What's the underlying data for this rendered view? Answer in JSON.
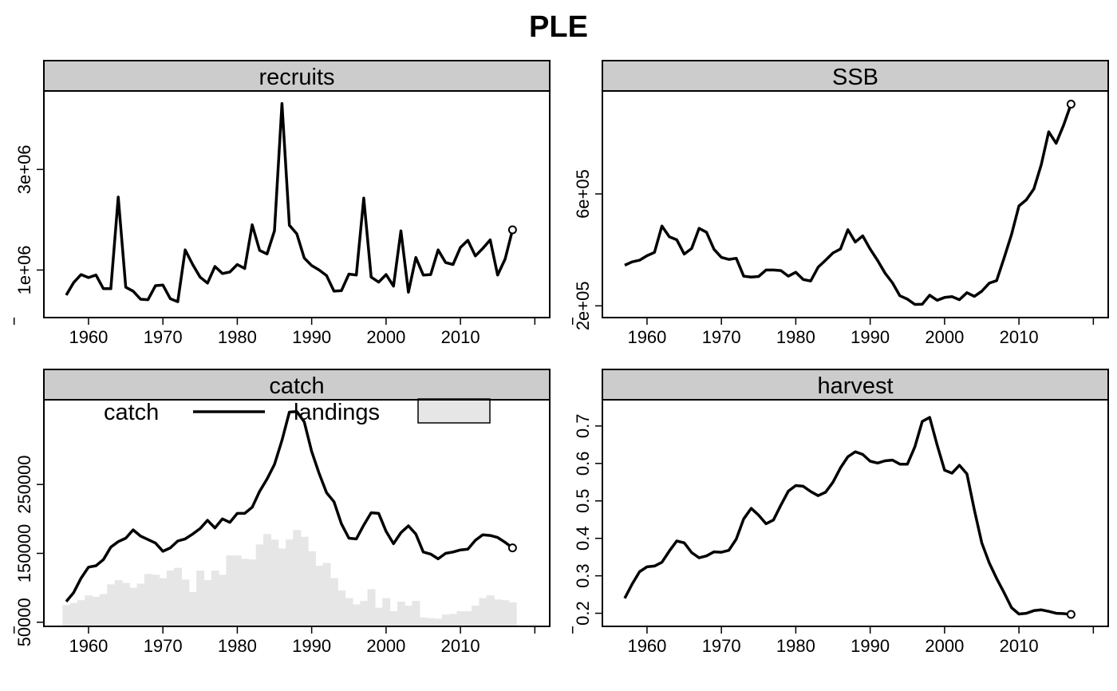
{
  "title": "PLE",
  "chart_data": [
    {
      "type": "line",
      "panel": "recruits",
      "x": [
        1957,
        1958,
        1959,
        1960,
        1961,
        1962,
        1963,
        1964,
        1965,
        1966,
        1967,
        1968,
        1969,
        1970,
        1971,
        1972,
        1973,
        1974,
        1975,
        1976,
        1977,
        1978,
        1979,
        1980,
        1981,
        1982,
        1983,
        1984,
        1985,
        1986,
        1987,
        1988,
        1989,
        1990,
        1991,
        1992,
        1993,
        1994,
        1995,
        1996,
        1997,
        1998,
        1999,
        2000,
        2001,
        2002,
        2003,
        2004,
        2005,
        2006,
        2007,
        2008,
        2009,
        2010,
        2011,
        2012,
        2013,
        2014,
        2015,
        2016,
        2017
      ],
      "series": [
        {
          "values": [
            500000,
            750000,
            910000,
            850000,
            900000,
            630000,
            630000,
            2450000,
            660000,
            580000,
            420000,
            410000,
            690000,
            700000,
            430000,
            370000,
            1400000,
            1110000,
            860000,
            740000,
            1070000,
            930000,
            960000,
            1110000,
            1030000,
            1900000,
            1390000,
            1320000,
            1780000,
            4310000,
            1890000,
            1720000,
            1240000,
            1090000,
            1000000,
            890000,
            580000,
            590000,
            920000,
            900000,
            2430000,
            860000,
            760000,
            910000,
            680000,
            1780000,
            560000,
            1250000,
            900000,
            910000,
            1400000,
            1150000,
            1110000,
            1450000,
            1590000,
            1280000,
            1430000,
            1600000,
            900000,
            1220000,
            1800000
          ]
        }
      ],
      "last_point_marker": true,
      "yticks": [
        "1e+06",
        "3e+06"
      ],
      "xticks": [
        1960,
        1970,
        1980,
        1990,
        2000,
        2010
      ],
      "xlim": [
        1954,
        2022
      ],
      "ylim": [
        55000,
        4560000
      ]
    },
    {
      "type": "line",
      "panel": "SSB",
      "x": [
        1957,
        1958,
        1959,
        1960,
        1961,
        1962,
        1963,
        1964,
        1965,
        1966,
        1967,
        1968,
        1969,
        1970,
        1971,
        1972,
        1973,
        1974,
        1975,
        1976,
        1977,
        1978,
        1979,
        1980,
        1981,
        1982,
        1983,
        1984,
        1985,
        1986,
        1987,
        1988,
        1989,
        1990,
        1991,
        1992,
        1993,
        1994,
        1995,
        1996,
        1997,
        1998,
        1999,
        2000,
        2001,
        2002,
        2003,
        2004,
        2005,
        2006,
        2007,
        2008,
        2009,
        2010,
        2011,
        2012,
        2013,
        2014,
        2015,
        2016,
        2017
      ],
      "series": [
        {
          "values": [
            345000,
            357000,
            363000,
            379000,
            391000,
            485000,
            447000,
            436000,
            385000,
            405000,
            477000,
            463000,
            402000,
            373000,
            366000,
            370000,
            306000,
            303000,
            305000,
            328000,
            328000,
            326000,
            306000,
            320000,
            294000,
            289000,
            338000,
            363000,
            389000,
            403000,
            472000,
            428000,
            450000,
            403000,
            362000,
            317000,
            282000,
            236000,
            224000,
            205000,
            206000,
            238000,
            220000,
            230000,
            233000,
            222000,
            247000,
            234000,
            252000,
            281000,
            290000,
            371000,
            455000,
            557000,
            579000,
            618000,
            705000,
            822000,
            781000,
            846000,
            921000
          ]
        }
      ],
      "last_point_marker": true,
      "yticks": [
        "2e+05",
        "6e+05"
      ],
      "xticks": [
        1960,
        1970,
        1980,
        1990,
        2000,
        2010
      ],
      "xlim": [
        1954,
        2022
      ],
      "ylim": [
        158000,
        968000
      ]
    },
    {
      "type": "line",
      "panel": "catch",
      "x": [
        1957,
        1958,
        1959,
        1960,
        1961,
        1962,
        1963,
        1964,
        1965,
        1966,
        1967,
        1968,
        1969,
        1970,
        1971,
        1972,
        1973,
        1974,
        1975,
        1976,
        1977,
        1978,
        1979,
        1980,
        1981,
        1982,
        1983,
        1984,
        1985,
        1986,
        1987,
        1988,
        1989,
        1990,
        1991,
        1992,
        1993,
        1994,
        1995,
        1996,
        1997,
        1998,
        1999,
        2000,
        2001,
        2002,
        2003,
        2004,
        2005,
        2006,
        2007,
        2008,
        2009,
        2010,
        2011,
        2012,
        2013,
        2014,
        2015,
        2016,
        2017
      ],
      "series": [
        {
          "name": "catch",
          "values": [
            80000,
            93000,
            114000,
            130000,
            132000,
            141000,
            159000,
            167000,
            172000,
            184000,
            175000,
            170000,
            165000,
            153000,
            158000,
            168000,
            171000,
            178000,
            186000,
            198000,
            187000,
            200000,
            195000,
            208000,
            208000,
            217000,
            240000,
            258000,
            279000,
            314000,
            355000,
            356000,
            341000,
            298000,
            266000,
            238000,
            225000,
            193000,
            172000,
            171000,
            191000,
            209000,
            208000,
            182000,
            164000,
            180000,
            190000,
            178000,
            152000,
            149000,
            142000,
            150000,
            152000,
            155000,
            156000,
            169000,
            177000,
            176000,
            173000,
            166000,
            158000
          ]
        },
        {
          "name": "landings",
          "type": "bar",
          "values": [
            75000,
            78000,
            82000,
            89000,
            87000,
            91000,
            105000,
            111000,
            107000,
            100000,
            106000,
            120000,
            119000,
            114000,
            125000,
            129000,
            112000,
            94000,
            125000,
            111000,
            125000,
            119000,
            147000,
            147000,
            142000,
            141000,
            163000,
            178000,
            170000,
            157000,
            170000,
            184000,
            174000,
            153000,
            132000,
            136000,
            114000,
            96000,
            85000,
            76000,
            81000,
            98000,
            71000,
            85000,
            66000,
            80000,
            74000,
            81000,
            57000,
            56000,
            55000,
            61000,
            62000,
            66000,
            66000,
            74000,
            85000,
            89000,
            83000,
            82000,
            79000
          ]
        }
      ],
      "legend": {
        "catch": "catch",
        "landings": "landings",
        "position": "top"
      },
      "last_point_marker": true,
      "yticks": [
        "50000",
        "150000",
        "250000"
      ],
      "xticks": [
        1960,
        1970,
        1980,
        1990,
        2000,
        2010
      ],
      "xlim": [
        1954,
        2022
      ],
      "ylim": [
        44000,
        373000
      ],
      "colors": {
        "landings": "#e6e6e6"
      }
    },
    {
      "type": "line",
      "panel": "harvest",
      "x": [
        1957,
        1958,
        1959,
        1960,
        1961,
        1962,
        1963,
        1964,
        1965,
        1966,
        1967,
        1968,
        1969,
        1970,
        1971,
        1972,
        1973,
        1974,
        1975,
        1976,
        1977,
        1978,
        1979,
        1980,
        1981,
        1982,
        1983,
        1984,
        1985,
        1986,
        1987,
        1988,
        1989,
        1990,
        1991,
        1992,
        1993,
        1994,
        1995,
        1996,
        1997,
        1998,
        1999,
        2000,
        2001,
        2002,
        2003,
        2004,
        2005,
        2006,
        2007,
        2008,
        2009,
        2010,
        2011,
        2012,
        2013,
        2014,
        2015,
        2016,
        2017
      ],
      "series": [
        {
          "values": [
            0.24,
            0.278,
            0.311,
            0.324,
            0.326,
            0.336,
            0.366,
            0.393,
            0.388,
            0.362,
            0.348,
            0.353,
            0.364,
            0.363,
            0.368,
            0.398,
            0.452,
            0.48,
            0.462,
            0.439,
            0.449,
            0.489,
            0.526,
            0.541,
            0.539,
            0.525,
            0.514,
            0.523,
            0.55,
            0.588,
            0.618,
            0.631,
            0.624,
            0.606,
            0.601,
            0.607,
            0.609,
            0.598,
            0.598,
            0.644,
            0.712,
            0.723,
            0.649,
            0.582,
            0.574,
            0.595,
            0.572,
            0.476,
            0.388,
            0.335,
            0.293,
            0.255,
            0.215,
            0.198,
            0.2,
            0.207,
            0.209,
            0.205,
            0.2,
            0.199,
            0.197
          ]
        }
      ],
      "last_point_marker": true,
      "yticks": [
        "0.2",
        "0.3",
        "0.4",
        "0.5",
        "0.6",
        "0.7"
      ],
      "xticks": [
        1960,
        1970,
        1980,
        1990,
        2000,
        2010
      ],
      "xlim": [
        1954,
        2022
      ],
      "ylim": [
        0.165,
        0.77
      ]
    }
  ]
}
